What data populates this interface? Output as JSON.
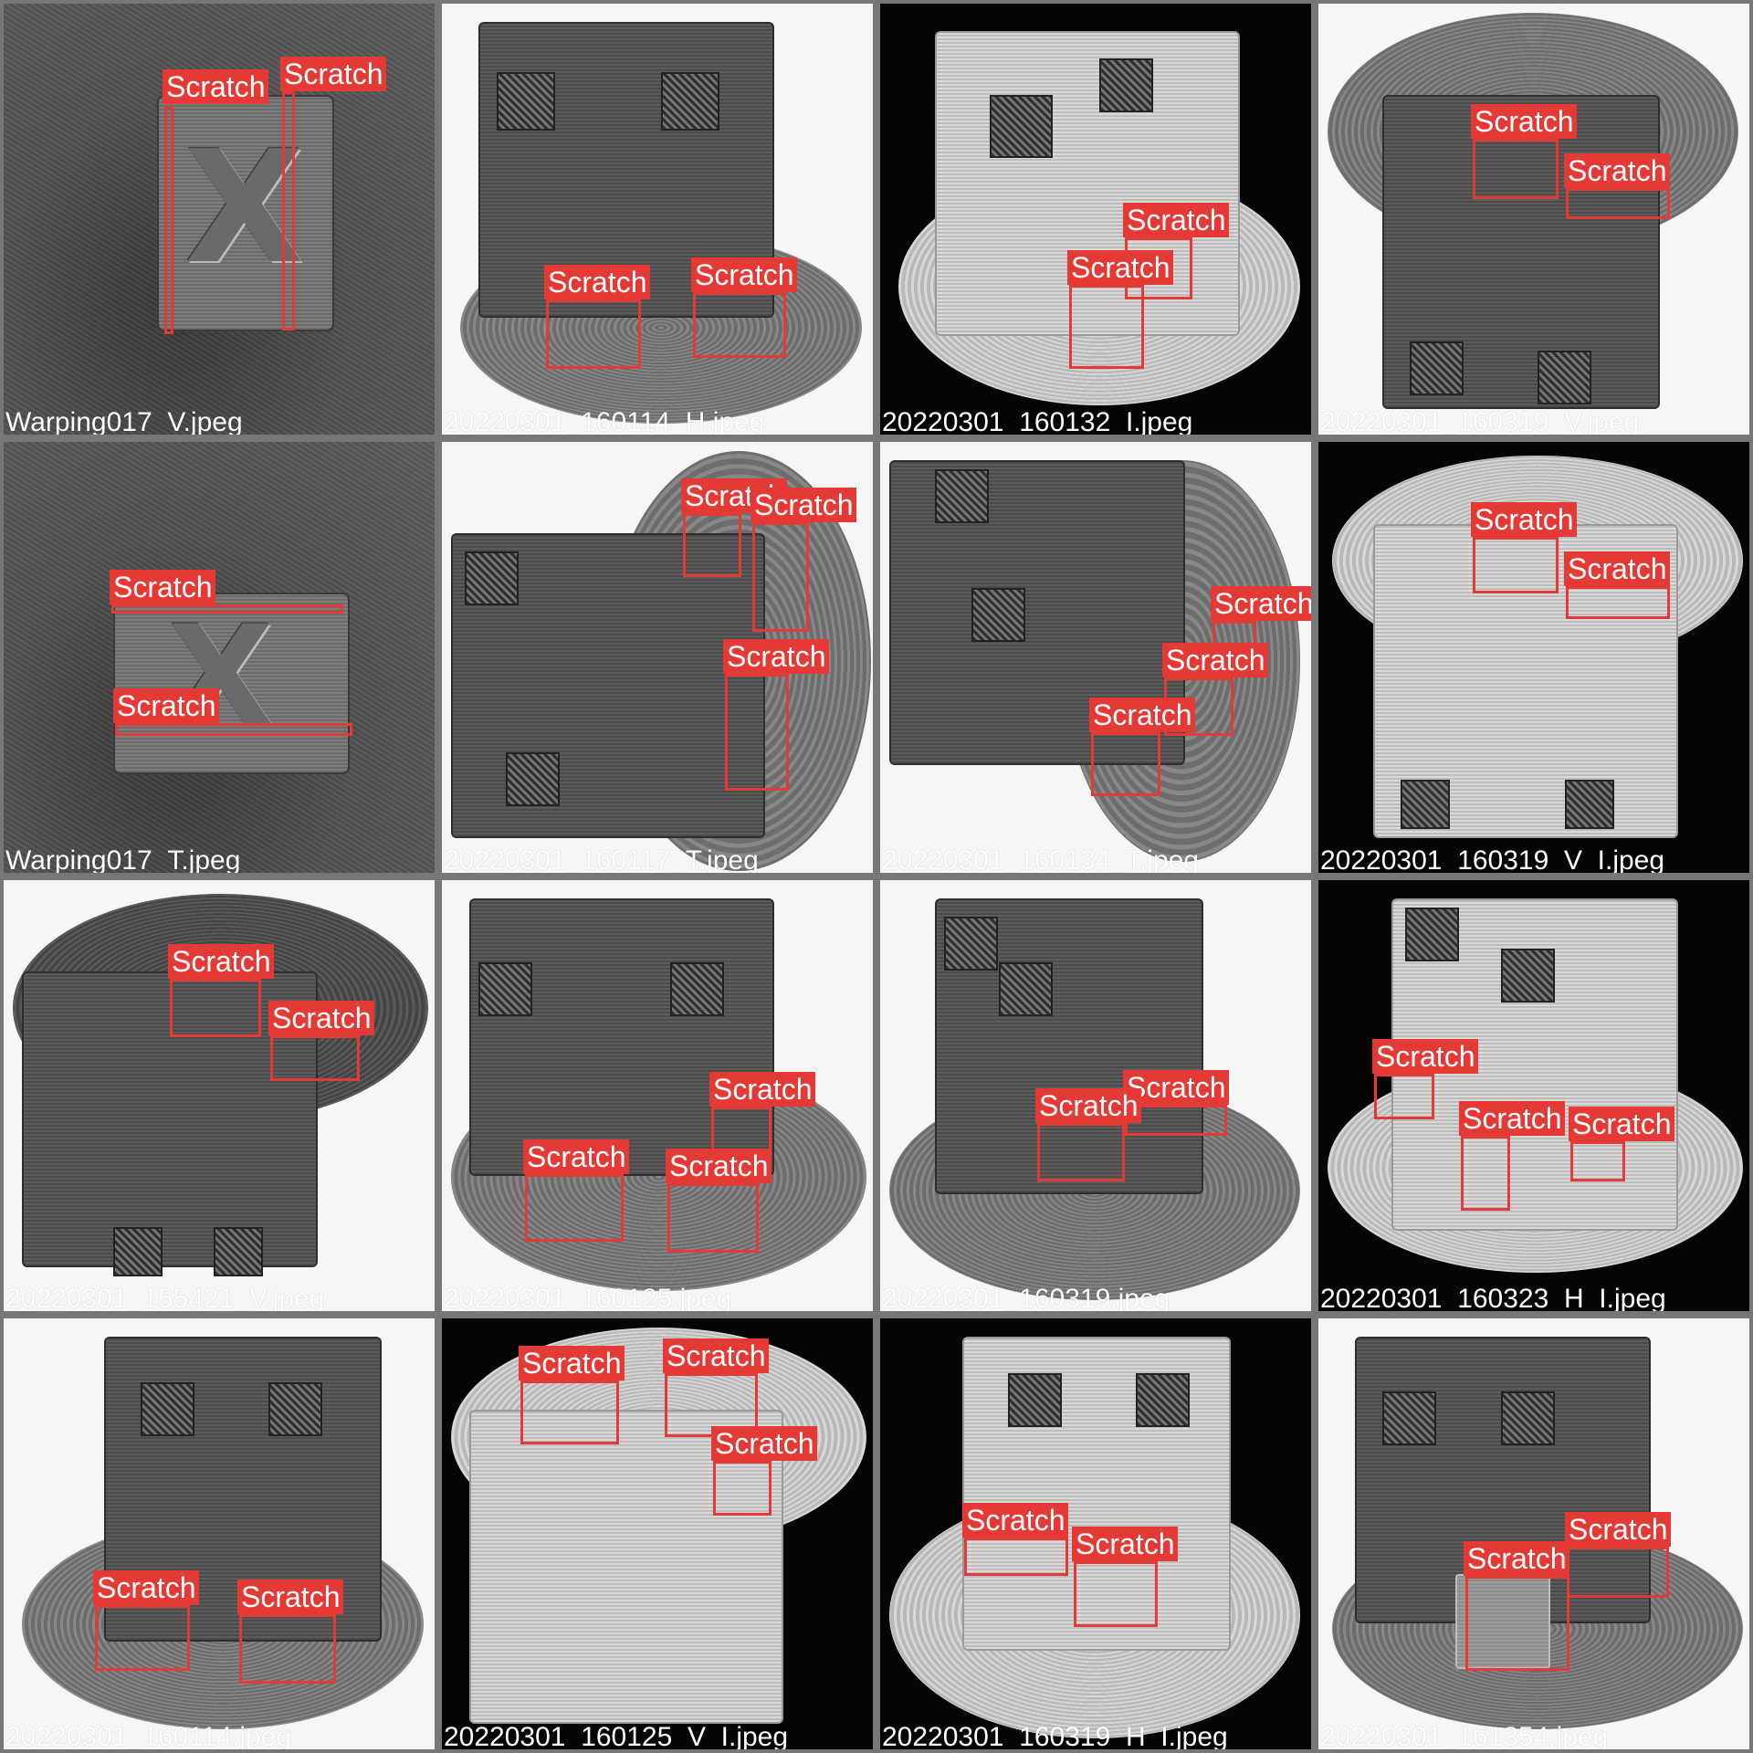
{
  "grid": {
    "columns": 4,
    "rows": 4
  },
  "colors": {
    "box": "#e53935",
    "label_text": "#ffffff",
    "caption_text": "#ffffff",
    "tile_border": "#777777"
  },
  "tiles": [
    {
      "filename": "Warping017_V.jpeg",
      "background": "fabric",
      "detections": [
        "Scratch",
        "Scratch"
      ]
    },
    {
      "filename": "20220301_160114_H.jpeg",
      "background": "white",
      "detections": [
        "Scratch",
        "Scratch"
      ]
    },
    {
      "filename": "20220301_160132_I.jpeg",
      "background": "black",
      "detections": [
        "Scratch",
        "Scratch"
      ]
    },
    {
      "filename": "20220301_160319_V.jpeg",
      "background": "white",
      "detections": [
        "Scratch",
        "Scratch"
      ]
    },
    {
      "filename": "Warping017_T.jpeg",
      "background": "fabric",
      "detections": [
        "Scratch",
        "Scratch"
      ]
    },
    {
      "filename": "20220301_160117_T.jpeg",
      "background": "white",
      "detections": [
        "Scratch",
        "Scratch",
        "Scratch"
      ]
    },
    {
      "filename": "20220301_160134_T.jpeg",
      "background": "white",
      "detections": [
        "Scratch",
        "Scratch",
        "Scratch"
      ]
    },
    {
      "filename": "20220301_160319_V_I.jpeg",
      "background": "black",
      "detections": [
        "Scratch",
        "Scratch"
      ]
    },
    {
      "filename": "20220301_155421_V.jpeg",
      "background": "white",
      "detections": [
        "Scratch",
        "Scratch"
      ]
    },
    {
      "filename": "20220301_160125.jpeg",
      "background": "white",
      "detections": [
        "Scratch",
        "Scratch",
        "Scratch"
      ]
    },
    {
      "filename": "20220301_160319.jpeg",
      "background": "white",
      "detections": [
        "Scratch",
        "Scratch"
      ]
    },
    {
      "filename": "20220301_160323_H_I.jpeg",
      "background": "black",
      "detections": [
        "Scratch",
        "Scratch",
        "Scratch"
      ]
    },
    {
      "filename": "20220301_160114.jpeg",
      "background": "white",
      "detections": [
        "Scratch",
        "Scratch"
      ]
    },
    {
      "filename": "20220301_160125_V_I.jpeg",
      "background": "black",
      "detections": [
        "Scratch",
        "Scratch",
        "Scratch"
      ]
    },
    {
      "filename": "20220301_160319_H_I.jpeg",
      "background": "black",
      "detections": [
        "Scratch",
        "Scratch"
      ]
    },
    {
      "filename": "20220301_161354.jpeg",
      "background": "white",
      "detections": [
        "Scratch",
        "Scratch"
      ]
    }
  ]
}
